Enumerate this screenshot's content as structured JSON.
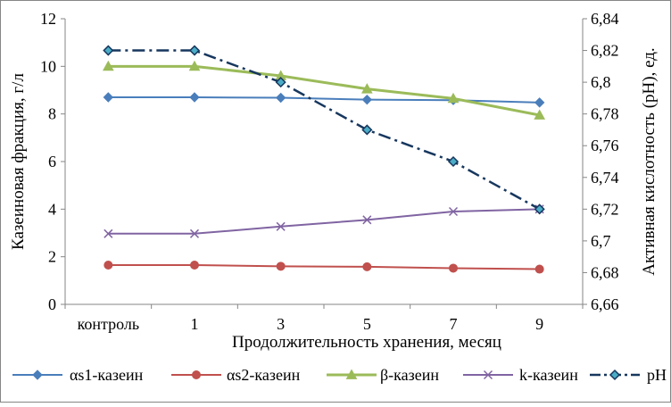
{
  "chart_data": {
    "type": "line",
    "categories": [
      "контроль",
      "1",
      "3",
      "5",
      "7",
      "9"
    ],
    "xlabel": "Продолжительность хранения, месяц",
    "ylabel": "Казеиновая фракция, г/л",
    "y2label": "Активная кислотность (pH), ед.",
    "ylim": [
      0,
      12
    ],
    "yticks": [
      "0",
      "2",
      "4",
      "6",
      "8",
      "10",
      "12"
    ],
    "y2lim": [
      6.66,
      6.84
    ],
    "y2ticks": [
      "6,66",
      "6,68",
      "6,7",
      "6,72",
      "6,74",
      "6,76",
      "6,78",
      "6,8",
      "6,82",
      "6,84"
    ],
    "grid": false,
    "legend_position": "bottom",
    "series": [
      {
        "name": "αs1-казеин",
        "axis": "left",
        "color": "#4a7ebb",
        "marker": "diamond",
        "line": "solid",
        "values": [
          8.7,
          8.7,
          8.68,
          8.6,
          8.58,
          8.48
        ]
      },
      {
        "name": "αs2-казеин",
        "axis": "left",
        "color": "#c0504d",
        "marker": "circle",
        "line": "solid",
        "values": [
          1.65,
          1.65,
          1.6,
          1.58,
          1.52,
          1.48
        ]
      },
      {
        "name": "β-казеин",
        "axis": "left",
        "color": "#9bbb59",
        "marker": "triangle",
        "line": "solid",
        "values": [
          10.0,
          10.0,
          9.6,
          9.05,
          8.65,
          7.95
        ]
      },
      {
        "name": "k-казеин",
        "axis": "left",
        "color": "#8064a2",
        "marker": "x",
        "line": "solid",
        "values": [
          2.97,
          2.97,
          3.27,
          3.55,
          3.9,
          4.0
        ]
      },
      {
        "name": "pH",
        "axis": "right",
        "color": "#17375e",
        "marker": "diamond-outline",
        "line": "dashdot",
        "values": [
          6.82,
          6.82,
          6.8,
          6.77,
          6.75,
          6.72
        ]
      }
    ]
  }
}
